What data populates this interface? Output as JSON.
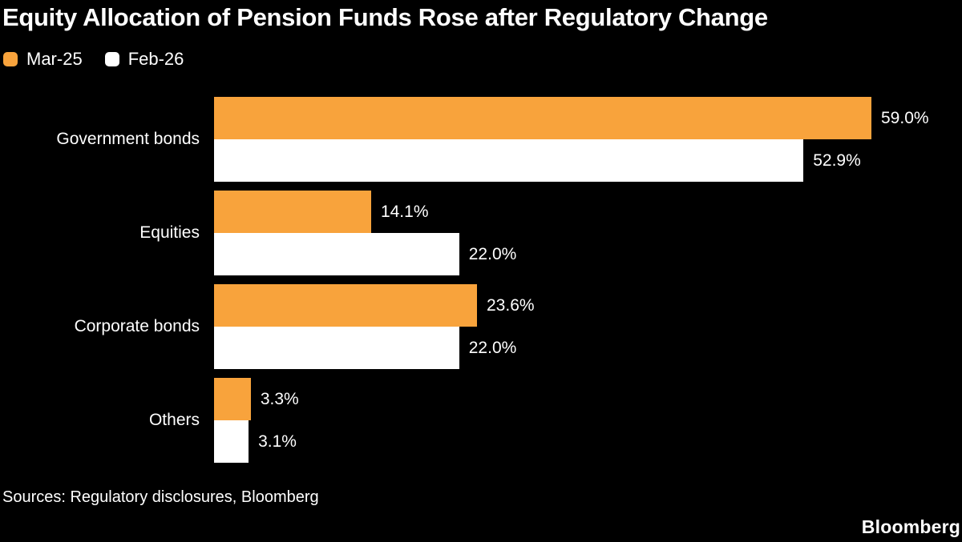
{
  "title": "Equity Allocation of Pension Funds Rose after Regulatory Change",
  "chart_data": {
    "type": "bar",
    "orientation": "horizontal",
    "title": "Equity Allocation of Pension Funds Rose after Regulatory Change",
    "categories": [
      "Government bonds",
      "Equities",
      "Corporate bonds",
      "Others"
    ],
    "series": [
      {
        "name": "Mar-25",
        "color": "#F8A33C",
        "values": [
          59.0,
          14.1,
          23.6,
          3.3
        ],
        "display_values": [
          "59.0%",
          "14.1%",
          "23.6%",
          "3.3%"
        ]
      },
      {
        "name": "Feb-26",
        "color": "#FFFFFF",
        "values": [
          52.9,
          22.0,
          22.0,
          3.1
        ],
        "display_values": [
          "52.9%",
          "22.0%",
          "22.0%",
          "3.1%"
        ]
      }
    ],
    "xlim": [
      0,
      59
    ],
    "value_suffix": "%",
    "grid": false,
    "legend_position": "top-left",
    "value_labels": "outside-end"
  },
  "footer": {
    "sources": "Sources: Regulatory disclosures, Bloomberg",
    "brand": "Bloomberg"
  },
  "colors": {
    "background": "#000000",
    "text": "#FFFFFF",
    "bar_mar25": "#F8A33C",
    "bar_feb26": "#FFFFFF"
  }
}
